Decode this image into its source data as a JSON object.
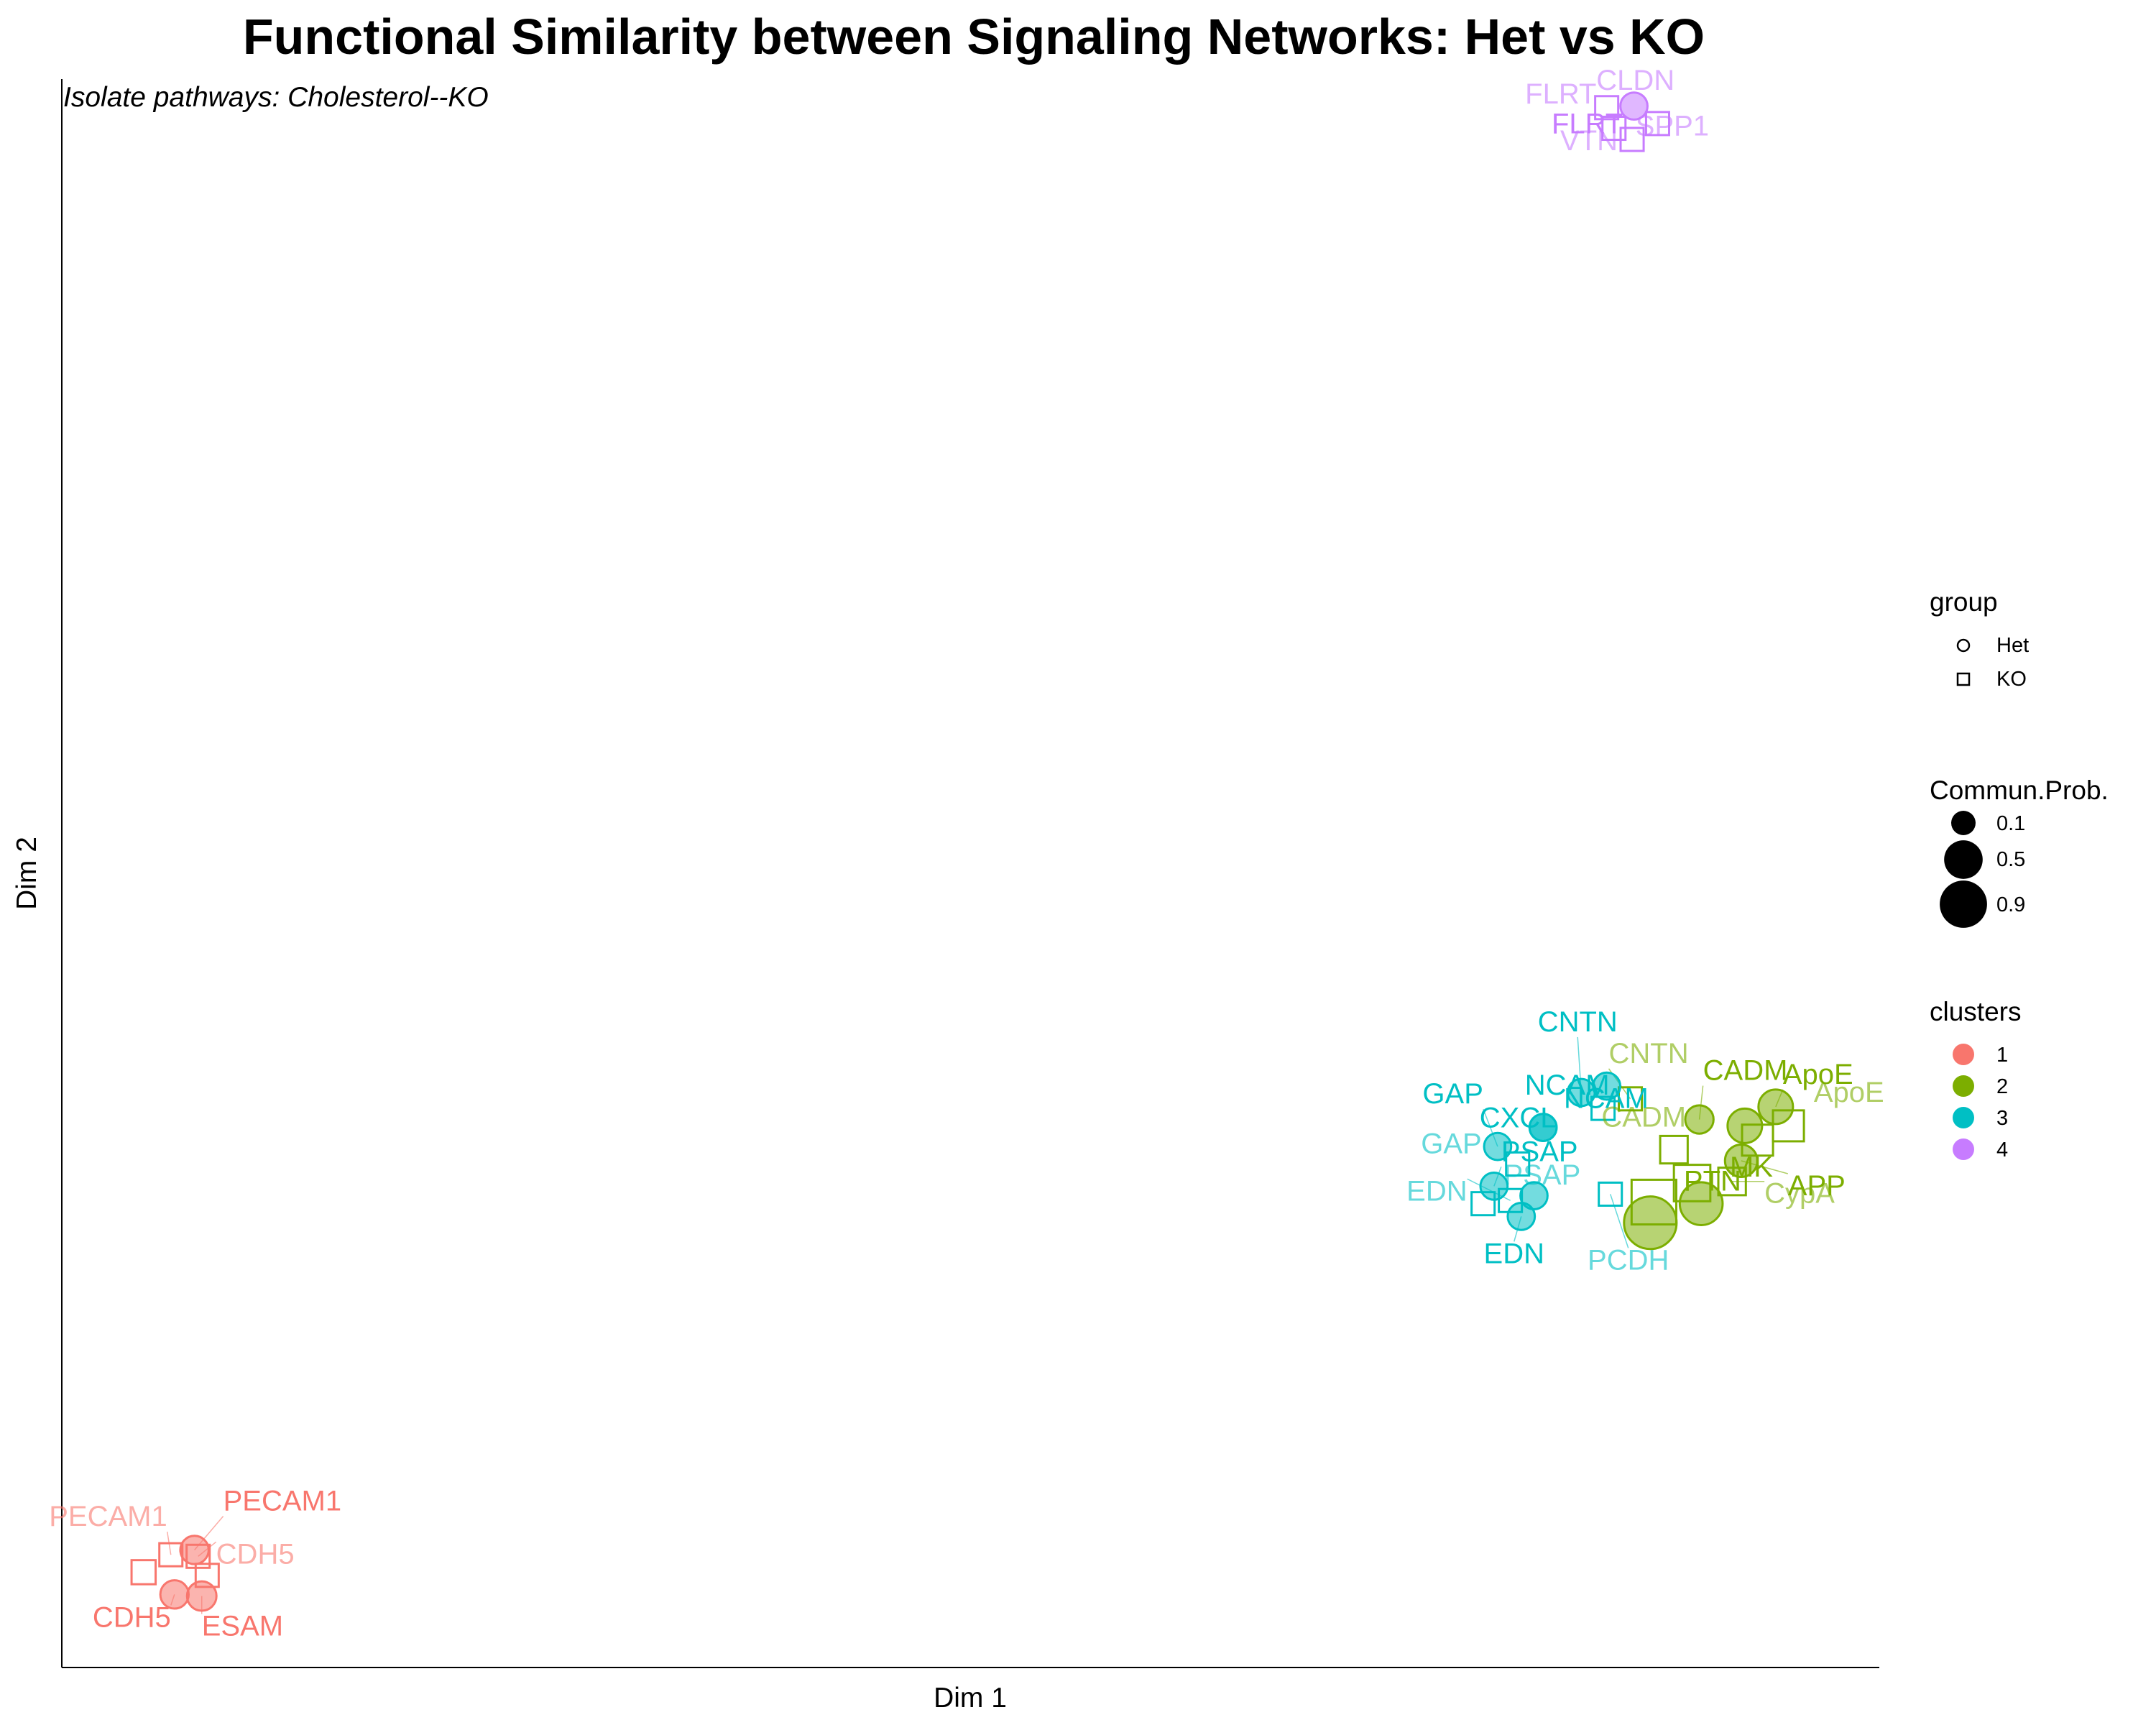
{
  "chart_data": {
    "type": "scatter",
    "title": "Functional Similarity between Signaling Networks: Het vs KO",
    "subtitle": "Isolate pathways:  Cholesterol--KO",
    "xlabel": "Dim 1",
    "ylabel": "Dim 2",
    "xlim": [
      0,
      100
    ],
    "ylim": [
      0,
      100
    ],
    "grid": false,
    "legend_position": "right",
    "colors": {
      "1": "#F8766D",
      "2": "#7CAE00",
      "3": "#00BFC4",
      "4": "#C77CFF"
    },
    "legends": {
      "group": {
        "title": "group",
        "items": [
          {
            "label": "Het",
            "shape": "circle"
          },
          {
            "label": "KO",
            "shape": "square"
          }
        ]
      },
      "size": {
        "title": "Commun.Prob.",
        "items": [
          {
            "label": "0.1",
            "value": 0.1
          },
          {
            "label": "0.5",
            "value": 0.5
          },
          {
            "label": "0.9",
            "value": 0.9
          }
        ]
      },
      "clusters": {
        "title": "clusters",
        "items": [
          {
            "label": "1",
            "cluster": "1"
          },
          {
            "label": "2",
            "cluster": "2"
          },
          {
            "label": "3",
            "cluster": "3"
          },
          {
            "label": "4",
            "cluster": "4"
          }
        ]
      }
    },
    "points": [
      {
        "label": "PECAM1",
        "group": "Het",
        "cluster": "1",
        "x": 7.3,
        "y": 7.4,
        "size": 0.12
      },
      {
        "label": "PECAM1",
        "group": "KO",
        "cluster": "1",
        "x": 6.0,
        "y": 7.1,
        "size": 0.1
      },
      {
        "label": "CDH5",
        "group": "KO",
        "cluster": "1",
        "x": 7.5,
        "y": 7.0,
        "size": 0.1
      },
      {
        "label": "CDH5",
        "group": "Het",
        "cluster": "1",
        "x": 6.2,
        "y": 4.6,
        "size": 0.12
      },
      {
        "label": "ESAM",
        "group": "Het",
        "cluster": "1",
        "x": 7.7,
        "y": 4.5,
        "size": 0.14
      },
      {
        "label": "",
        "group": "KO",
        "cluster": "1",
        "x": 4.5,
        "y": 6.0,
        "size": 0.12
      },
      {
        "label": "",
        "group": "KO",
        "cluster": "1",
        "x": 8.0,
        "y": 5.8,
        "size": 0.1
      },
      {
        "label": "PTN",
        "group": "Het",
        "cluster": "2",
        "x": 87.4,
        "y": 28.0,
        "size": 0.9
      },
      {
        "label": "MK",
        "group": "Het",
        "cluster": "2",
        "x": 90.2,
        "y": 29.2,
        "size": 0.5
      },
      {
        "label": "",
        "group": "KO",
        "cluster": "2",
        "x": 87.6,
        "y": 29.3,
        "size": 0.9
      },
      {
        "label": "",
        "group": "KO",
        "cluster": "2",
        "x": 89.7,
        "y": 30.5,
        "size": 0.5
      },
      {
        "label": "CypA",
        "group": "KO",
        "cluster": "2",
        "x": 91.9,
        "y": 30.6,
        "size": 0.2
      },
      {
        "label": "APP",
        "group": "Het",
        "cluster": "2",
        "x": 92.4,
        "y": 31.9,
        "size": 0.2
      },
      {
        "label": "",
        "group": "KO",
        "cluster": "2",
        "x": 93.3,
        "y": 33.2,
        "size": 0.3
      },
      {
        "label": "CADM",
        "group": "KO",
        "cluster": "2",
        "x": 88.7,
        "y": 32.6,
        "size": 0.2
      },
      {
        "label": "",
        "group": "Het",
        "cluster": "2",
        "x": 92.6,
        "y": 34.1,
        "size": 0.25
      },
      {
        "label": "ApoE",
        "group": "KO",
        "cluster": "2",
        "x": 95.0,
        "y": 34.1,
        "size": 0.3
      },
      {
        "label": "ApoE",
        "group": "Het",
        "cluster": "2",
        "x": 94.3,
        "y": 35.3,
        "size": 0.25
      },
      {
        "label": "CADM",
        "group": "Het",
        "cluster": "2",
        "x": 90.1,
        "y": 34.5,
        "size": 0.12
      },
      {
        "label": "CNTN",
        "group": "KO",
        "cluster": "2",
        "x": 86.3,
        "y": 35.8,
        "size": 0.1
      },
      {
        "label": "NCAM",
        "group": "Het",
        "cluster": "3",
        "x": 85.0,
        "y": 36.6,
        "size": 0.1
      },
      {
        "label": "CNTN",
        "group": "Het",
        "cluster": "3",
        "x": 83.6,
        "y": 36.2,
        "size": 0.1
      },
      {
        "label": "",
        "group": "KO",
        "cluster": "3",
        "x": 84.8,
        "y": 35.2,
        "size": 0.1
      },
      {
        "label": "NCAM",
        "group": "Het",
        "cluster": "3",
        "x": 81.5,
        "y": 34.0,
        "size": 0.1
      },
      {
        "label": "CXCL",
        "group": "Het",
        "cluster": "3",
        "x": 81.5,
        "y": 34.0,
        "size": 0.1
      },
      {
        "label": "GAP",
        "group": "Het",
        "cluster": "3",
        "x": 79.0,
        "y": 32.8,
        "size": 0.1
      },
      {
        "label": "GAP",
        "group": "KO",
        "cluster": "3",
        "x": 80.1,
        "y": 31.7,
        "size": 0.1
      },
      {
        "label": "PSAP",
        "group": "Het",
        "cluster": "3",
        "x": 78.8,
        "y": 30.3,
        "size": 0.1
      },
      {
        "label": "",
        "group": "Het",
        "cluster": "3",
        "x": 81.0,
        "y": 29.7,
        "size": 0.1
      },
      {
        "label": "PSAP",
        "group": "KO",
        "cluster": "3",
        "x": 78.2,
        "y": 29.2,
        "size": 0.1
      },
      {
        "label": "EDN",
        "group": "KO",
        "cluster": "3",
        "x": 79.7,
        "y": 29.4,
        "size": 0.1
      },
      {
        "label": "EDN",
        "group": "Het",
        "cluster": "3",
        "x": 80.3,
        "y": 28.4,
        "size": 0.1
      },
      {
        "label": "PCDH",
        "group": "KO",
        "cluster": "3",
        "x": 85.2,
        "y": 29.8,
        "size": 0.1
      },
      {
        "label": "FLRT",
        "group": "Het",
        "cluster": "4",
        "x": 86.5,
        "y": 98.3,
        "size": 0.1
      },
      {
        "label": "CLDN",
        "group": "KO",
        "cluster": "4",
        "x": 85.0,
        "y": 98.2,
        "size": 0.1
      },
      {
        "label": "FLRT",
        "group": "KO",
        "cluster": "4",
        "x": 87.8,
        "y": 97.2,
        "size": 0.1
      },
      {
        "label": "SPP1",
        "group": "KO",
        "cluster": "4",
        "x": 85.4,
        "y": 96.9,
        "size": 0.1
      },
      {
        "label": "VTN",
        "group": "KO",
        "cluster": "4",
        "x": 86.4,
        "y": 96.2,
        "size": 0.1
      }
    ]
  }
}
